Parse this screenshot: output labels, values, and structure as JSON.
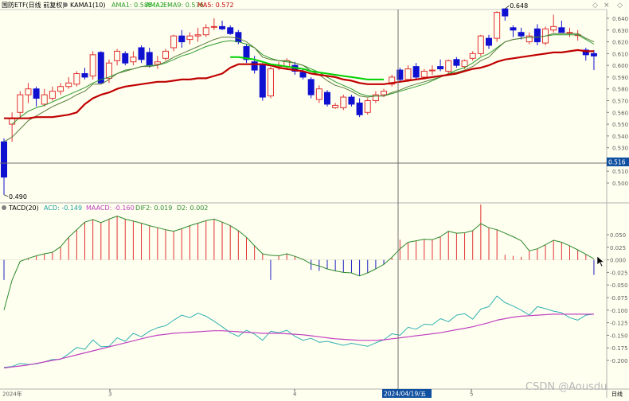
{
  "colors": {
    "background": "#fffff0",
    "up_candle": "#e03030",
    "down_candle": "#1010d0",
    "kama": "#a02828",
    "ama1_line": "#2d9a2d",
    "ama2_line": "#00d000",
    "ema9_line": "#5a7a3a",
    "ma5_line": "#c00000",
    "acd_line": "#30b0b0",
    "maacd_line": "#c040c0",
    "dif_line": "#2d8a2d",
    "macd_up": "#e03030",
    "macd_down": "#2020c0",
    "crosshair": "#707070",
    "price_box": "#1050a0"
  },
  "main_panel": {
    "title": "国防ETF(日线 前复权)",
    "kama_label": "KAMA1(10)",
    "legend": [
      {
        "label": "AMA1: 0.585",
        "color": "#2d9a2d"
      },
      {
        "label": "AMA2: -",
        "color": "#00c000"
      },
      {
        "label": "EMA9: 0.576",
        "color": "#2d9a2d"
      },
      {
        "label": "MA5: 0.572",
        "color": "#c00000"
      }
    ],
    "high_label": "0.648",
    "low_label": "0.490",
    "crosshair_price": "0.516",
    "y_ticks": [
      "0.640",
      "0.630",
      "0.620",
      "0.610",
      "0.600",
      "0.590",
      "0.580",
      "0.570",
      "0.560",
      "0.550",
      "0.540",
      "0.530",
      "0.520",
      "0.510",
      "0.500"
    ]
  },
  "lower_panel": {
    "title": "TACD(20)",
    "legend": [
      {
        "label": "ACD: -0.149",
        "color": "#20a0a0"
      },
      {
        "label": "MAACD: -0.160",
        "color": "#c040c0"
      },
      {
        "label": "DIF2: 0.019",
        "color": "#2d8a2d"
      },
      {
        "label": "D2: 0.002",
        "color": "#2d8a2d"
      }
    ],
    "y_ticks": [
      "0.050",
      "0.025",
      "0.000",
      "-0.025",
      "-0.050",
      "-0.075",
      "-0.100",
      "-0.125",
      "-0.150",
      "-0.175",
      "-0.200"
    ]
  },
  "x_axis": {
    "labels": [
      "2024年",
      "3",
      "4",
      "5"
    ],
    "crosshair_date": "2024/04/19/五",
    "period": "日线"
  },
  "watermark": "CSDN @Aousdu",
  "chart_data": {
    "type": "candlestick",
    "candles": [
      {
        "o": 0.535,
        "h": 0.538,
        "l": 0.49,
        "c": 0.505
      },
      {
        "o": 0.55,
        "h": 0.56,
        "l": 0.535,
        "c": 0.555
      },
      {
        "o": 0.56,
        "h": 0.578,
        "l": 0.555,
        "c": 0.575
      },
      {
        "o": 0.575,
        "h": 0.585,
        "l": 0.568,
        "c": 0.58
      },
      {
        "o": 0.58,
        "h": 0.582,
        "l": 0.565,
        "c": 0.572
      },
      {
        "o": 0.567,
        "h": 0.58,
        "l": 0.565,
        "c": 0.575
      },
      {
        "o": 0.572,
        "h": 0.582,
        "l": 0.57,
        "c": 0.578
      },
      {
        "o": 0.578,
        "h": 0.585,
        "l": 0.575,
        "c": 0.582
      },
      {
        "o": 0.582,
        "h": 0.59,
        "l": 0.58,
        "c": 0.585
      },
      {
        "o": 0.584,
        "h": 0.595,
        "l": 0.582,
        "c": 0.593
      },
      {
        "o": 0.593,
        "h": 0.598,
        "l": 0.588,
        "c": 0.59
      },
      {
        "o": 0.591,
        "h": 0.612,
        "l": 0.588,
        "c": 0.609
      },
      {
        "o": 0.611,
        "h": 0.612,
        "l": 0.585,
        "c": 0.585
      },
      {
        "o": 0.589,
        "h": 0.605,
        "l": 0.585,
        "c": 0.602
      },
      {
        "o": 0.604,
        "h": 0.614,
        "l": 0.6,
        "c": 0.612
      },
      {
        "o": 0.61,
        "h": 0.612,
        "l": 0.6,
        "c": 0.602
      },
      {
        "o": 0.603,
        "h": 0.612,
        "l": 0.6,
        "c": 0.607
      },
      {
        "o": 0.615,
        "h": 0.617,
        "l": 0.602,
        "c": 0.605
      },
      {
        "o": 0.611,
        "h": 0.615,
        "l": 0.598,
        "c": 0.6
      },
      {
        "o": 0.601,
        "h": 0.608,
        "l": 0.597,
        "c": 0.603
      },
      {
        "o": 0.606,
        "h": 0.614,
        "l": 0.604,
        "c": 0.612
      },
      {
        "o": 0.615,
        "h": 0.626,
        "l": 0.612,
        "c": 0.625
      },
      {
        "o": 0.625,
        "h": 0.63,
        "l": 0.615,
        "c": 0.62
      },
      {
        "o": 0.622,
        "h": 0.628,
        "l": 0.618,
        "c": 0.625
      },
      {
        "o": 0.625,
        "h": 0.632,
        "l": 0.62,
        "c": 0.626
      },
      {
        "o": 0.626,
        "h": 0.635,
        "l": 0.624,
        "c": 0.632
      },
      {
        "o": 0.633,
        "h": 0.64,
        "l": 0.63,
        "c": 0.633
      },
      {
        "o": 0.633,
        "h": 0.638,
        "l": 0.63,
        "c": 0.631
      },
      {
        "o": 0.632,
        "h": 0.634,
        "l": 0.626,
        "c": 0.627
      },
      {
        "o": 0.628,
        "h": 0.63,
        "l": 0.618,
        "c": 0.62
      },
      {
        "o": 0.616,
        "h": 0.618,
        "l": 0.602,
        "c": 0.605
      },
      {
        "o": 0.603,
        "h": 0.608,
        "l": 0.593,
        "c": 0.596
      },
      {
        "o": 0.6,
        "h": 0.602,
        "l": 0.57,
        "c": 0.573
      },
      {
        "o": 0.574,
        "h": 0.599,
        "l": 0.572,
        "c": 0.597
      },
      {
        "o": 0.599,
        "h": 0.603,
        "l": 0.596,
        "c": 0.6
      },
      {
        "o": 0.599,
        "h": 0.606,
        "l": 0.596,
        "c": 0.604
      },
      {
        "o": 0.6,
        "h": 0.603,
        "l": 0.592,
        "c": 0.595
      },
      {
        "o": 0.594,
        "h": 0.597,
        "l": 0.588,
        "c": 0.59
      },
      {
        "o": 0.588,
        "h": 0.59,
        "l": 0.572,
        "c": 0.575
      },
      {
        "o": 0.571,
        "h": 0.583,
        "l": 0.568,
        "c": 0.58
      },
      {
        "o": 0.577,
        "h": 0.579,
        "l": 0.565,
        "c": 0.567
      },
      {
        "o": 0.564,
        "h": 0.568,
        "l": 0.563,
        "c": 0.566
      },
      {
        "o": 0.564,
        "h": 0.575,
        "l": 0.562,
        "c": 0.573
      },
      {
        "o": 0.573,
        "h": 0.575,
        "l": 0.565,
        "c": 0.567
      },
      {
        "o": 0.568,
        "h": 0.572,
        "l": 0.556,
        "c": 0.558
      },
      {
        "o": 0.56,
        "h": 0.572,
        "l": 0.558,
        "c": 0.57
      },
      {
        "o": 0.57,
        "h": 0.578,
        "l": 0.568,
        "c": 0.575
      },
      {
        "o": 0.575,
        "h": 0.58,
        "l": 0.573,
        "c": 0.578
      },
      {
        "o": 0.584,
        "h": 0.592,
        "l": 0.582,
        "c": 0.59
      },
      {
        "o": 0.596,
        "h": 0.598,
        "l": 0.586,
        "c": 0.588
      },
      {
        "o": 0.588,
        "h": 0.6,
        "l": 0.586,
        "c": 0.597
      },
      {
        "o": 0.599,
        "h": 0.602,
        "l": 0.588,
        "c": 0.59
      },
      {
        "o": 0.59,
        "h": 0.597,
        "l": 0.588,
        "c": 0.595
      },
      {
        "o": 0.596,
        "h": 0.6,
        "l": 0.592,
        "c": 0.596
      },
      {
        "o": 0.599,
        "h": 0.605,
        "l": 0.595,
        "c": 0.597
      },
      {
        "o": 0.595,
        "h": 0.605,
        "l": 0.593,
        "c": 0.604
      },
      {
        "o": 0.605,
        "h": 0.607,
        "l": 0.598,
        "c": 0.6
      },
      {
        "o": 0.599,
        "h": 0.605,
        "l": 0.597,
        "c": 0.604
      },
      {
        "o": 0.606,
        "h": 0.612,
        "l": 0.604,
        "c": 0.61
      },
      {
        "o": 0.61,
        "h": 0.626,
        "l": 0.608,
        "c": 0.625
      },
      {
        "o": 0.623,
        "h": 0.626,
        "l": 0.614,
        "c": 0.617
      },
      {
        "o": 0.623,
        "h": 0.646,
        "l": 0.62,
        "c": 0.645
      },
      {
        "o": 0.648,
        "h": 0.648,
        "l": 0.638,
        "c": 0.642
      },
      {
        "o": 0.632,
        "h": 0.634,
        "l": 0.624,
        "c": 0.63
      },
      {
        "o": 0.628,
        "h": 0.632,
        "l": 0.622,
        "c": 0.625
      },
      {
        "o": 0.62,
        "h": 0.628,
        "l": 0.618,
        "c": 0.625
      },
      {
        "o": 0.631,
        "h": 0.635,
        "l": 0.617,
        "c": 0.62
      },
      {
        "o": 0.619,
        "h": 0.633,
        "l": 0.617,
        "c": 0.631
      },
      {
        "o": 0.63,
        "h": 0.643,
        "l": 0.628,
        "c": 0.633
      },
      {
        "o": 0.632,
        "h": 0.638,
        "l": 0.628,
        "c": 0.628
      },
      {
        "o": 0.628,
        "h": 0.632,
        "l": 0.624,
        "c": 0.628
      },
      {
        "o": 0.626,
        "h": 0.63,
        "l": 0.621,
        "c": 0.626
      },
      {
        "o": 0.613,
        "h": 0.615,
        "l": 0.604,
        "c": 0.609
      },
      {
        "o": 0.61,
        "h": 0.613,
        "l": 0.596,
        "c": 0.608
      }
    ],
    "series": [
      {
        "name": "AMA1",
        "color": "#2d9a2d",
        "values": [
          null,
          0.55,
          0.556,
          0.561,
          0.564,
          0.566,
          0.569,
          0.572,
          0.575,
          0.578,
          0.581,
          0.585,
          0.588,
          0.59,
          0.593,
          0.596,
          0.597,
          0.599,
          0.6,
          0.6,
          0.602,
          0.605,
          0.608,
          0.61,
          0.613,
          0.616,
          0.618,
          0.62,
          0.621,
          0.62,
          0.618,
          0.615,
          0.609,
          0.606,
          0.604,
          0.603,
          0.602,
          0.6,
          0.597,
          0.594,
          0.59,
          0.586,
          0.583,
          0.58,
          0.576,
          0.574,
          0.574,
          0.574,
          0.576,
          0.578,
          0.58,
          0.582,
          0.584,
          0.587,
          0.59,
          0.593,
          0.596,
          0.598,
          0.602,
          0.607,
          0.61,
          0.615,
          0.62,
          0.622,
          0.623,
          0.624,
          0.624,
          0.625,
          0.626,
          0.626,
          0.626,
          0.626,
          0.622,
          0.618
        ]
      },
      {
        "name": "EMA9",
        "color": "#5a7a3a",
        "values": [
          0.535,
          0.539,
          0.546,
          0.553,
          0.557,
          0.561,
          0.565,
          0.568,
          0.571,
          0.575,
          0.578,
          0.584,
          0.584,
          0.588,
          0.593,
          0.595,
          0.597,
          0.599,
          0.599,
          0.6,
          0.603,
          0.607,
          0.61,
          0.613,
          0.616,
          0.619,
          0.622,
          0.624,
          0.624,
          0.623,
          0.62,
          0.615,
          0.607,
          0.605,
          0.604,
          0.604,
          0.602,
          0.6,
          0.595,
          0.592,
          0.587,
          0.583,
          0.581,
          0.578,
          0.574,
          0.573,
          0.574,
          0.574,
          0.577,
          0.579,
          0.582,
          0.584,
          0.586,
          0.588,
          0.59,
          0.593,
          0.594,
          0.596,
          0.599,
          0.604,
          0.607,
          0.614,
          0.62,
          0.622,
          0.623,
          0.624,
          0.624,
          0.625,
          0.627,
          0.627,
          0.627,
          0.627,
          0.623,
          0.62
        ]
      },
      {
        "name": "MA5",
        "color": "#c00000",
        "values": [
          0.555,
          0.555,
          0.555,
          0.555,
          0.556,
          0.556,
          0.556,
          0.557,
          0.558,
          0.56,
          0.567,
          0.572,
          0.575,
          0.577,
          0.58,
          0.582,
          0.583,
          0.584,
          0.585,
          0.586,
          0.586,
          0.587,
          0.588,
          0.588,
          0.589,
          0.589,
          0.591,
          0.593,
          0.598,
          0.601,
          0.601,
          0.601,
          0.601,
          0.6,
          0.598,
          0.597,
          0.596,
          0.595,
          0.593,
          0.592,
          0.591,
          0.59,
          0.588,
          0.587,
          0.585,
          0.584,
          0.584,
          0.584,
          0.585,
          0.586,
          0.587,
          0.588,
          0.589,
          0.59,
          0.591,
          0.592,
          0.593,
          0.595,
          0.597,
          0.598,
          0.6,
          0.603,
          0.605,
          0.606,
          0.607,
          0.608,
          0.609,
          0.61,
          0.611,
          0.611,
          0.612,
          0.613,
          0.612,
          0.612
        ]
      },
      {
        "name": "AMA2",
        "color": "#00d000",
        "values": [
          null,
          null,
          null,
          null,
          null,
          null,
          null,
          null,
          null,
          null,
          null,
          null,
          null,
          null,
          null,
          null,
          null,
          null,
          null,
          null,
          null,
          null,
          null,
          null,
          null,
          null,
          null,
          null,
          0.607,
          0.607,
          0.606,
          0.605,
          0.603,
          0.601,
          0.6,
          0.599,
          0.598,
          0.597,
          0.595,
          0.594,
          0.593,
          0.592,
          0.591,
          0.59,
          0.589,
          0.588,
          0.588,
          0.588,
          null,
          null,
          null,
          null,
          null,
          null,
          null,
          null,
          null,
          null,
          null,
          null,
          null,
          null,
          null,
          null,
          null,
          null,
          null,
          null,
          null,
          null,
          null,
          null,
          null,
          null
        ]
      }
    ],
    "tacd": {
      "dif2": [
        -0.1,
        -0.04,
        -0.003,
        0.003,
        0.008,
        0.012,
        0.015,
        0.026,
        0.045,
        0.06,
        0.075,
        0.08,
        0.074,
        0.081,
        0.087,
        0.081,
        0.077,
        0.073,
        0.068,
        0.064,
        0.06,
        0.057,
        0.062,
        0.068,
        0.073,
        0.078,
        0.081,
        0.075,
        0.068,
        0.058,
        0.045,
        0.028,
        0.012,
        0.009,
        0.008,
        0.012,
        0.007,
        0.001,
        -0.008,
        -0.012,
        -0.018,
        -0.022,
        -0.025,
        -0.026,
        -0.032,
        -0.026,
        -0.018,
        -0.009,
        0.005,
        0.022,
        0.035,
        0.038,
        0.041,
        0.04,
        0.046,
        0.057,
        0.053,
        0.054,
        0.058,
        0.072,
        0.064,
        0.06,
        0.053,
        0.046,
        0.038,
        0.018,
        0.022,
        0.03,
        0.039,
        0.035,
        0.028,
        0.02,
        0.011,
        0.002
      ],
      "macd_bars": [
        -0.04,
        null,
        null,
        0.003,
        0.008,
        0.012,
        0.015,
        0.026,
        0.045,
        0.06,
        0.075,
        0.08,
        0.074,
        0.081,
        0.087,
        0.081,
        0.077,
        0.073,
        0.068,
        0.064,
        0.06,
        0.057,
        0.062,
        0.068,
        0.073,
        0.078,
        0.081,
        0.075,
        0.068,
        0.058,
        0.045,
        0.028,
        0.012,
        -0.04,
        0.008,
        0.012,
        0.007,
        0.001,
        -0.02,
        -0.022,
        -0.018,
        -0.022,
        -0.025,
        -0.026,
        -0.032,
        -0.026,
        -0.018,
        -0.009,
        0.005,
        0.04,
        0.035,
        0.038,
        0.041,
        0.04,
        0.046,
        0.057,
        0.053,
        0.054,
        0.058,
        0.11,
        0.064,
        0.06,
        0.01,
        0.008,
        0.006,
        0.018,
        0.022,
        0.03,
        0.039,
        0.035,
        0.028,
        0.02,
        0.011,
        -0.03
      ],
      "acd": [
        -0.214,
        -0.212,
        -0.206,
        -0.208,
        -0.207,
        -0.203,
        -0.198,
        -0.198,
        -0.187,
        -0.174,
        -0.178,
        -0.159,
        -0.173,
        -0.172,
        -0.155,
        -0.162,
        -0.146,
        -0.153,
        -0.142,
        -0.135,
        -0.131,
        -0.12,
        -0.11,
        -0.115,
        -0.106,
        -0.112,
        -0.122,
        -0.133,
        -0.145,
        -0.152,
        -0.14,
        -0.148,
        -0.16,
        -0.142,
        -0.145,
        -0.14,
        -0.152,
        -0.16,
        -0.156,
        -0.164,
        -0.162,
        -0.166,
        -0.17,
        -0.166,
        -0.169,
        -0.172,
        -0.165,
        -0.159,
        -0.147,
        -0.15,
        -0.134,
        -0.138,
        -0.128,
        -0.129,
        -0.117,
        -0.123,
        -0.11,
        -0.107,
        -0.118,
        -0.098,
        -0.093,
        -0.072,
        -0.085,
        -0.092,
        -0.1,
        -0.11,
        -0.093,
        -0.097,
        -0.102,
        -0.105,
        -0.115,
        -0.12,
        -0.11,
        -0.108
      ],
      "maacd": [
        -0.215,
        -0.213,
        -0.211,
        -0.209,
        -0.206,
        -0.203,
        -0.2,
        -0.197,
        -0.193,
        -0.189,
        -0.185,
        -0.181,
        -0.177,
        -0.173,
        -0.169,
        -0.165,
        -0.161,
        -0.157,
        -0.153,
        -0.15,
        -0.148,
        -0.146,
        -0.145,
        -0.144,
        -0.143,
        -0.142,
        -0.141,
        -0.141,
        -0.142,
        -0.143,
        -0.144,
        -0.145,
        -0.146,
        -0.146,
        -0.146,
        -0.147,
        -0.148,
        -0.149,
        -0.151,
        -0.153,
        -0.155,
        -0.157,
        -0.158,
        -0.159,
        -0.16,
        -0.16,
        -0.16,
        -0.159,
        -0.157,
        -0.155,
        -0.153,
        -0.151,
        -0.149,
        -0.147,
        -0.145,
        -0.142,
        -0.139,
        -0.136,
        -0.133,
        -0.129,
        -0.125,
        -0.12,
        -0.117,
        -0.114,
        -0.112,
        -0.111,
        -0.11,
        -0.109,
        -0.108,
        -0.108,
        -0.108,
        -0.108,
        -0.108,
        -0.108
      ]
    }
  }
}
